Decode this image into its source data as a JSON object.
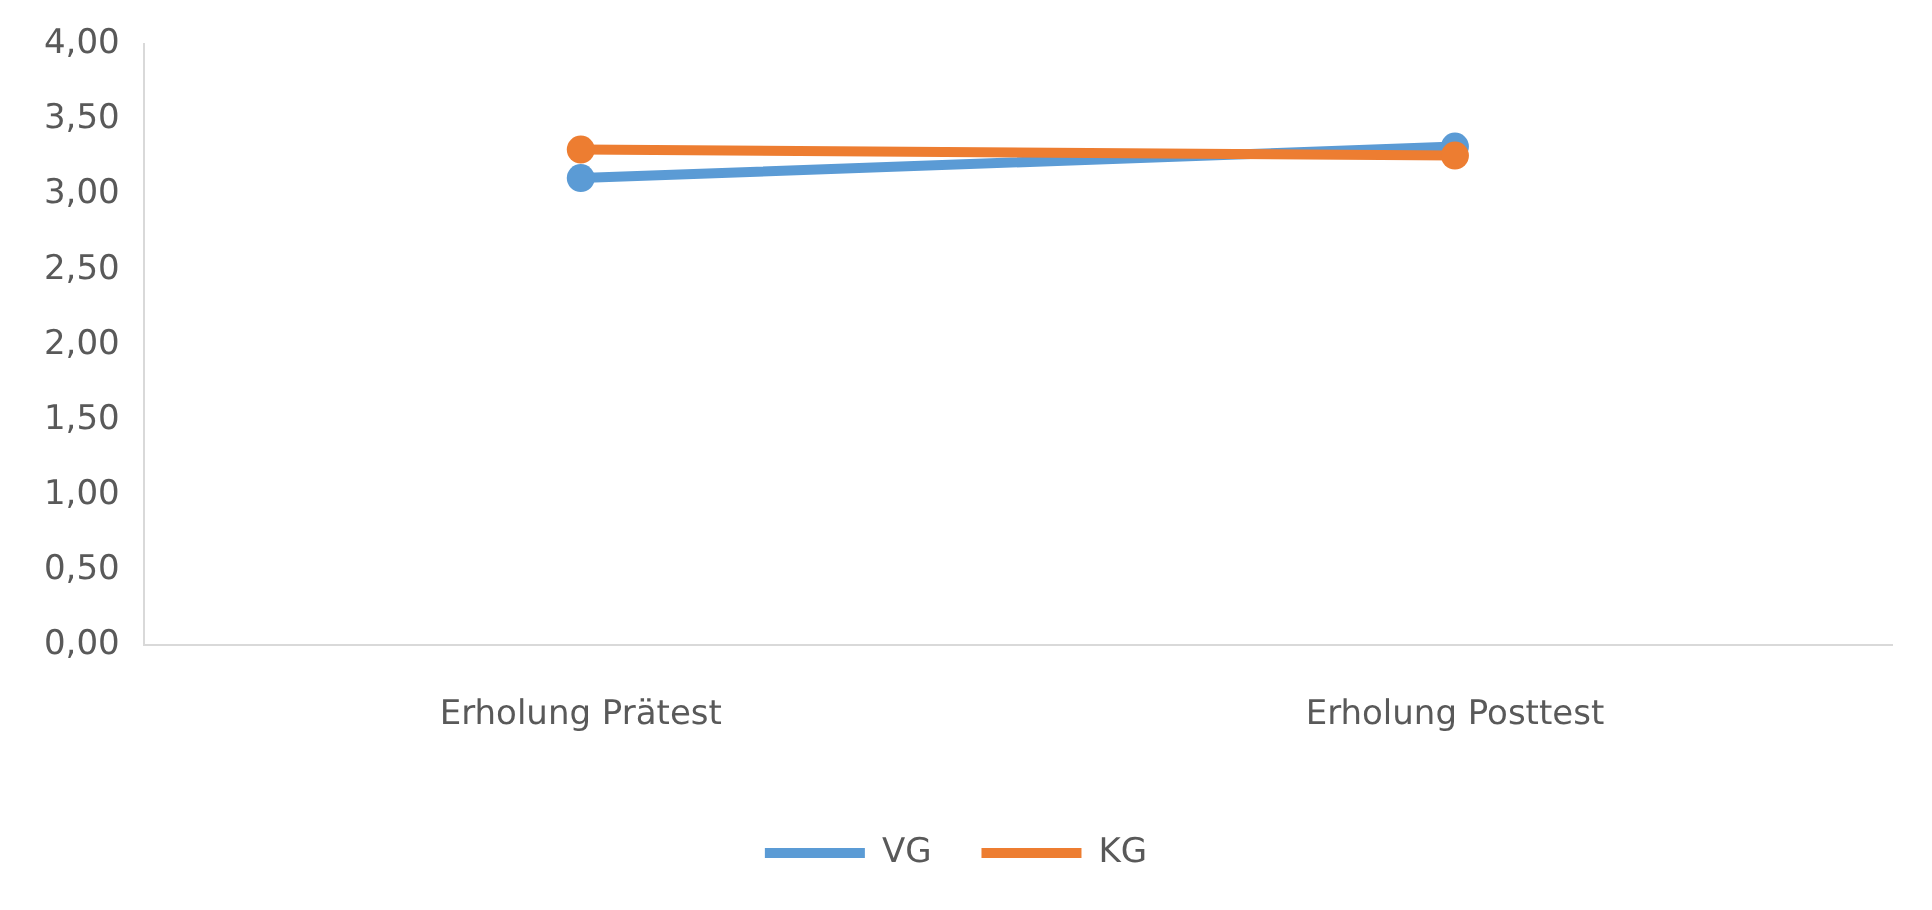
{
  "chart_data": {
    "type": "line",
    "categories": [
      "Erholung Prätest",
      "Erholung Posttest"
    ],
    "series": [
      {
        "name": "VG",
        "color": "#5b9bd5",
        "values": [
          3.11,
          3.32
        ]
      },
      {
        "name": "KG",
        "color": "#ed7d31",
        "values": [
          3.3,
          3.26
        ]
      }
    ],
    "ylim": [
      0,
      4
    ],
    "yticks": [
      {
        "value": 0,
        "label": "0,00"
      },
      {
        "value": 0.5,
        "label": "0,50"
      },
      {
        "value": 1,
        "label": "1,00"
      },
      {
        "value": 1.5,
        "label": "1,50"
      },
      {
        "value": 2,
        "label": "2,00"
      },
      {
        "value": 2.5,
        "label": "2,50"
      },
      {
        "value": 3,
        "label": "3,00"
      },
      {
        "value": 3.5,
        "label": "3,50"
      },
      {
        "value": 4,
        "label": "4,00"
      }
    ],
    "grid": false,
    "legend": "bottom",
    "marker": "circle",
    "line_style": "solid"
  }
}
